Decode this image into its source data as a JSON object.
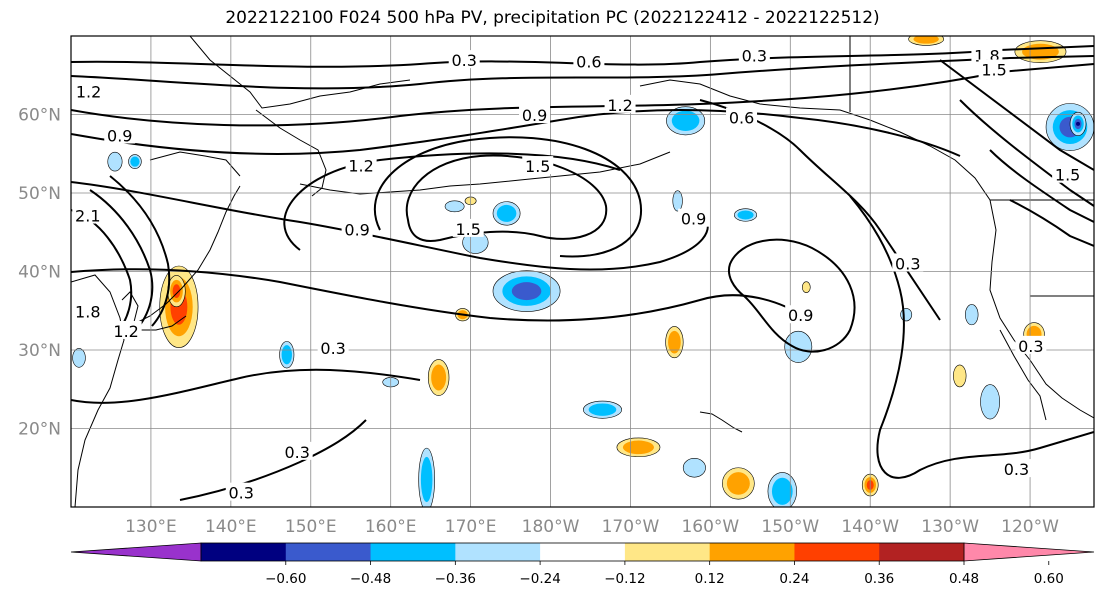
{
  "chart_data": {
    "type": "map-contour",
    "title": "2022122100 F024 500 hPa PV, precipitation PC (2022122412 - 2022122512)",
    "lat_ticks": [
      "20°N",
      "30°N",
      "40°N",
      "50°N",
      "60°N"
    ],
    "lat_values": [
      20,
      30,
      40,
      50,
      60
    ],
    "lon_ticks": [
      "130°E",
      "140°E",
      "150°E",
      "160°E",
      "170°E",
      "180°W",
      "170°W",
      "160°W",
      "150°W",
      "140°W",
      "130°W",
      "120°W"
    ],
    "lon_values": [
      130,
      140,
      150,
      160,
      170,
      180,
      190,
      200,
      210,
      220,
      230,
      240
    ],
    "lon_range": [
      120,
      248
    ],
    "lat_range": [
      10,
      70
    ],
    "grid": true,
    "pv_contour_levels": [
      0.3,
      0.6,
      0.9,
      1.2,
      1.5,
      1.8,
      2.1
    ],
    "pv_contour_labels": [
      {
        "text": "0.3",
        "lon": 169.2,
        "lat": 66.8
      },
      {
        "text": "0.6",
        "lon": 184.8,
        "lat": 66.6
      },
      {
        "text": "0.3",
        "lon": 205.5,
        "lat": 67.4
      },
      {
        "text": "1.2",
        "lon": 188.7,
        "lat": 61.1
      },
      {
        "text": "0.9",
        "lon": 178.0,
        "lat": 59.8
      },
      {
        "text": "0.6",
        "lon": 203.9,
        "lat": 59.5
      },
      {
        "text": "1.2",
        "lon": 156.3,
        "lat": 53.4
      },
      {
        "text": "1.5",
        "lon": 178.4,
        "lat": 53.3
      },
      {
        "text": "1.5",
        "lon": 169.7,
        "lat": 45.3
      },
      {
        "text": "0.9",
        "lon": 155.8,
        "lat": 45.2
      },
      {
        "text": "0.9",
        "lon": 197.9,
        "lat": 46.6
      },
      {
        "text": "0.9",
        "lon": 211.3,
        "lat": 34.3
      },
      {
        "text": "0.3",
        "lon": 224.7,
        "lat": 40.9
      },
      {
        "text": "1.5",
        "lon": 244.7,
        "lat": 52.2
      },
      {
        "text": "1.2",
        "lon": 122.2,
        "lat": 62.8
      },
      {
        "text": "0.9",
        "lon": 126.1,
        "lat": 57.2
      },
      {
        "text": "2.1",
        "lon": 122.1,
        "lat": 47.0
      },
      {
        "text": "1.8",
        "lon": 122.1,
        "lat": 34.8
      },
      {
        "text": "1.2",
        "lon": 126.9,
        "lat": 32.3
      },
      {
        "text": "0.3",
        "lon": 152.8,
        "lat": 30.1
      },
      {
        "text": "0.3",
        "lon": 148.3,
        "lat": 16.9
      },
      {
        "text": "0.3",
        "lon": 141.3,
        "lat": 11.7
      },
      {
        "text": "0.3",
        "lon": 238.3,
        "lat": 14.7
      },
      {
        "text": "1.8",
        "lon": 234.6,
        "lat": 67.4
      },
      {
        "text": "1.5",
        "lon": 235.5,
        "lat": 65.6
      },
      {
        "text": "0.3",
        "lon": 240.1,
        "lat": 30.4
      }
    ],
    "colorbar": {
      "ticks": [
        "−0.60",
        "−0.48",
        "−0.36",
        "−0.24",
        "−0.12",
        "0.12",
        "0.24",
        "0.36",
        "0.48",
        "0.60"
      ],
      "bounds": [
        -0.6,
        -0.48,
        -0.36,
        -0.24,
        -0.12,
        0.12,
        0.24,
        0.36,
        0.48,
        0.6
      ],
      "under_color": "#9932cc",
      "over_color": "#ff88aa",
      "colors": [
        "#000080",
        "#3a5acd",
        "#00bfff",
        "#b0e2ff",
        "#ffffff",
        "#ffe787",
        "#ffa200",
        "#ff4000",
        "#b22222"
      ]
    },
    "precip_fill_colors": {
      "neg_mid": "#00bfff",
      "neg_strong": "#3a5acd",
      "neg_very_strong": "#000080",
      "neg_weak": "#b0e2ff",
      "pos_weak": "#ffe787",
      "pos_mid": "#ffa200",
      "pos_strong": "#ff4000"
    },
    "precip_anomalies": [
      {
        "lon": 133.5,
        "lat": 35.5,
        "rlon": 2.4,
        "rlat": 5.2,
        "sign": 1,
        "level": 3
      },
      {
        "lon": 133.2,
        "lat": 37.5,
        "rlon": 1.1,
        "rlat": 2.0,
        "sign": 1,
        "level": 4
      },
      {
        "lon": 125.5,
        "lat": 54.0,
        "rlon": 0.9,
        "rlat": 1.2,
        "sign": -1,
        "level": 1
      },
      {
        "lon": 121.0,
        "lat": 29.0,
        "rlon": 0.8,
        "rlat": 1.2,
        "sign": -1,
        "level": 1
      },
      {
        "lon": 147.0,
        "lat": 29.4,
        "rlon": 0.9,
        "rlat": 1.7,
        "sign": -1,
        "level": 2
      },
      {
        "lon": 170.6,
        "lat": 43.7,
        "rlon": 1.6,
        "rlat": 1.4,
        "sign": -1,
        "level": 1
      },
      {
        "lon": 177.0,
        "lat": 37.5,
        "rlon": 4.2,
        "rlat": 2.6,
        "sign": -1,
        "level": 3
      },
      {
        "lon": 174.5,
        "lat": 47.4,
        "rlon": 1.7,
        "rlat": 1.5,
        "sign": -1,
        "level": 2
      },
      {
        "lon": 168.0,
        "lat": 48.3,
        "rlon": 1.2,
        "rlat": 0.7,
        "sign": -1,
        "level": 1
      },
      {
        "lon": 196.9,
        "lat": 59.2,
        "rlon": 2.4,
        "rlat": 1.8,
        "sign": -1,
        "level": 2
      },
      {
        "lon": 195.9,
        "lat": 49.0,
        "rlon": 0.6,
        "rlat": 1.3,
        "sign": -1,
        "level": 1
      },
      {
        "lon": 204.4,
        "lat": 47.2,
        "rlon": 1.4,
        "rlat": 0.8,
        "sign": -1,
        "level": 2
      },
      {
        "lon": 211.0,
        "lat": 30.4,
        "rlon": 1.7,
        "rlat": 2.0,
        "sign": -1,
        "level": 1
      },
      {
        "lon": 166.0,
        "lat": 26.5,
        "rlon": 1.3,
        "rlat": 2.3,
        "sign": 1,
        "level": 2
      },
      {
        "lon": 195.5,
        "lat": 31.0,
        "rlon": 1.1,
        "rlat": 2.0,
        "sign": 1,
        "level": 2
      },
      {
        "lon": 164.5,
        "lat": 13.5,
        "rlon": 1.0,
        "rlat": 4.0,
        "sign": -1,
        "level": 2
      },
      {
        "lon": 186.5,
        "lat": 22.4,
        "rlon": 2.4,
        "rlat": 1.1,
        "sign": -1,
        "level": 2
      },
      {
        "lon": 191.0,
        "lat": 17.6,
        "rlon": 2.7,
        "rlat": 1.2,
        "sign": 1,
        "level": 2
      },
      {
        "lon": 198.0,
        "lat": 15.0,
        "rlon": 1.4,
        "rlat": 1.2,
        "sign": -1,
        "level": 1
      },
      {
        "lon": 203.5,
        "lat": 13.0,
        "rlon": 2.0,
        "rlat": 2.0,
        "sign": 1,
        "level": 2
      },
      {
        "lon": 209.0,
        "lat": 12.0,
        "rlon": 1.8,
        "rlat": 2.4,
        "sign": -1,
        "level": 2
      },
      {
        "lon": 220.0,
        "lat": 12.8,
        "rlon": 1.0,
        "rlat": 1.4,
        "sign": 1,
        "level": 3
      },
      {
        "lon": 235.0,
        "lat": 23.4,
        "rlon": 1.2,
        "rlat": 2.2,
        "sign": -1,
        "level": 1
      },
      {
        "lon": 231.2,
        "lat": 26.7,
        "rlon": 0.8,
        "rlat": 1.4,
        "sign": 1,
        "level": 1
      },
      {
        "lon": 240.5,
        "lat": 32.0,
        "rlon": 1.3,
        "rlat": 1.5,
        "sign": 1,
        "level": 2
      },
      {
        "lon": 232.7,
        "lat": 34.5,
        "rlon": 0.8,
        "rlat": 1.3,
        "sign": -1,
        "level": 1
      },
      {
        "lon": 245.0,
        "lat": 58.4,
        "rlon": 3.0,
        "rlat": 3.0,
        "sign": -1,
        "level": 3
      },
      {
        "lon": 246.0,
        "lat": 58.8,
        "rlon": 1.0,
        "rlat": 1.5,
        "sign": -1,
        "level": 4
      },
      {
        "lon": 241.3,
        "lat": 68.0,
        "rlon": 3.2,
        "rlat": 1.4,
        "sign": 1,
        "level": 2
      },
      {
        "lon": 227.0,
        "lat": 69.6,
        "rlon": 2.2,
        "rlat": 0.8,
        "sign": 1,
        "level": 2
      },
      {
        "lon": 212.0,
        "lat": 38.0,
        "rlon": 0.5,
        "rlat": 0.7,
        "sign": 1,
        "level": 1
      },
      {
        "lon": 212.5,
        "lat": 34.5,
        "rlon": 0.6,
        "rlat": 0.8,
        "sign": 1,
        "level": 2
      },
      {
        "lon": 224.5,
        "lat": 34.5,
        "rlon": 0.7,
        "rlat": 0.8,
        "sign": -1,
        "level": 1
      },
      {
        "lon": 160.0,
        "lat": 25.9,
        "rlon": 1.0,
        "rlat": 0.6,
        "sign": -1,
        "level": 1
      },
      {
        "lon": 169.0,
        "lat": 34.5,
        "rlon": 0.9,
        "rlat": 0.8,
        "sign": 1,
        "level": 2
      },
      {
        "lon": 170.0,
        "lat": 49.0,
        "rlon": 0.7,
        "rlat": 0.5,
        "sign": 1,
        "level": 1
      },
      {
        "lon": 128.0,
        "lat": 54.0,
        "rlon": 0.8,
        "rlat": 0.9,
        "sign": -1,
        "level": 2
      }
    ]
  }
}
